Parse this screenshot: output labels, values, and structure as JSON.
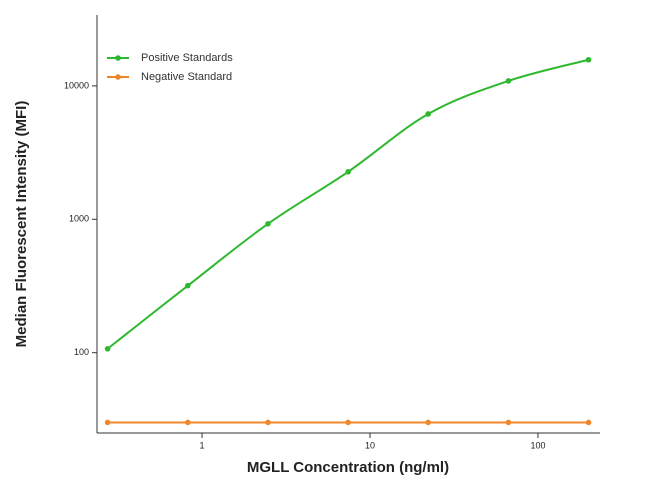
{
  "chart_data": {
    "type": "line",
    "x_label": "MGLL Concentration (ng/ml)",
    "y_label": "Median  Fluorescent Intensity  (MFI)",
    "x": [
      0.274,
      0.823,
      2.47,
      7.41,
      22.2,
      66.7,
      200
    ],
    "series": [
      {
        "name": "Positive Standards",
        "color": "#2eb82e",
        "values": [
          107,
          318,
          925,
          2270,
          6160,
          10900,
          15700
        ]
      },
      {
        "name": "Negative Standard",
        "color": "#f0862a",
        "values": [
          30,
          30,
          30,
          30,
          30,
          30,
          30
        ]
      }
    ],
    "xlim": [
      0.237,
      234
    ],
    "ylim": [
      25,
      34000
    ],
    "xticks": [
      1,
      10,
      100
    ],
    "yticks": [
      100,
      1000,
      10000
    ],
    "log_x": true,
    "log_y": true,
    "grid": false,
    "legend": "top-left"
  }
}
